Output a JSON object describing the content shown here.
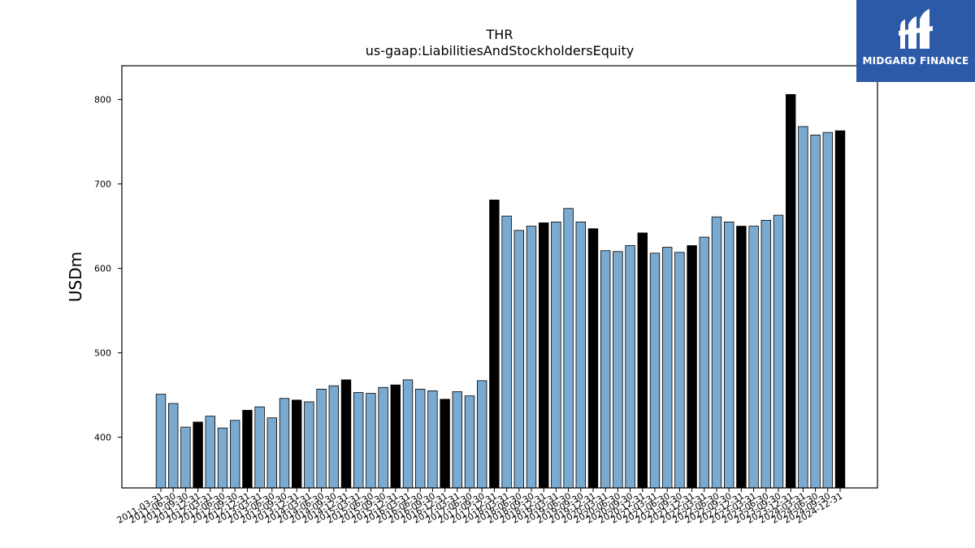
{
  "logo": {
    "text": "MIDGARD FINANCE"
  },
  "chart_data": {
    "type": "bar",
    "title": "THR",
    "subtitle": "us-gaap:LiabilitiesAndStockholdersEquity",
    "xlabel": "",
    "ylabel": "USDm",
    "ylim": [
      340,
      840
    ],
    "yticks": [
      400,
      500,
      600,
      700,
      800
    ],
    "grid": false,
    "colors": {
      "quarter": "#7aaad0",
      "year_end": "#000000",
      "edge": "#000000"
    },
    "categories": [
      "2011-03-31",
      "2011-06-30",
      "2011-09-30",
      "2011-12-31",
      "2012-03-31",
      "2012-06-30",
      "2012-09-30",
      "2012-12-31",
      "2013-03-31",
      "2013-06-30",
      "2013-09-30",
      "2013-12-31",
      "2014-03-31",
      "2014-06-30",
      "2014-09-30",
      "2014-12-31",
      "2015-03-31",
      "2015-06-30",
      "2015-09-30",
      "2015-12-31",
      "2016-03-31",
      "2016-06-30",
      "2016-09-30",
      "2016-12-31",
      "2017-03-31",
      "2017-06-30",
      "2017-09-30",
      "2017-12-31",
      "2018-03-31",
      "2018-06-30",
      "2018-09-30",
      "2018-12-31",
      "2019-03-31",
      "2019-06-30",
      "2019-09-30",
      "2019-12-31",
      "2020-03-31",
      "2020-06-30",
      "2020-09-30",
      "2020-12-31",
      "2021-03-31",
      "2021-06-30",
      "2021-09-30",
      "2021-12-31",
      "2022-03-31",
      "2022-06-30",
      "2022-09-30",
      "2022-12-31",
      "2023-03-31",
      "2023-06-30",
      "2023-09-30",
      "2023-12-31",
      "2024-03-31",
      "2024-06-30",
      "2024-09-30",
      "2024-12-31"
    ],
    "values": [
      451,
      440,
      412,
      418,
      425,
      411,
      420,
      432,
      436,
      423,
      446,
      444,
      442,
      457,
      461,
      468,
      453,
      452,
      459,
      462,
      468,
      457,
      455,
      445,
      454,
      449,
      467,
      681,
      662,
      645,
      650,
      654,
      655,
      671,
      655,
      647,
      621,
      620,
      627,
      642,
      618,
      625,
      619,
      627,
      637,
      661,
      655,
      650,
      650,
      657,
      663,
      806,
      768,
      758,
      761,
      763
    ],
    "fiscal_year_end": [
      false,
      false,
      false,
      true,
      false,
      false,
      false,
      true,
      false,
      false,
      false,
      true,
      false,
      false,
      false,
      true,
      false,
      false,
      false,
      true,
      false,
      false,
      false,
      true,
      false,
      false,
      false,
      true,
      false,
      false,
      false,
      true,
      false,
      false,
      false,
      true,
      false,
      false,
      false,
      true,
      false,
      false,
      false,
      true,
      false,
      false,
      false,
      true,
      false,
      false,
      false,
      true,
      false,
      false,
      false,
      true
    ]
  }
}
